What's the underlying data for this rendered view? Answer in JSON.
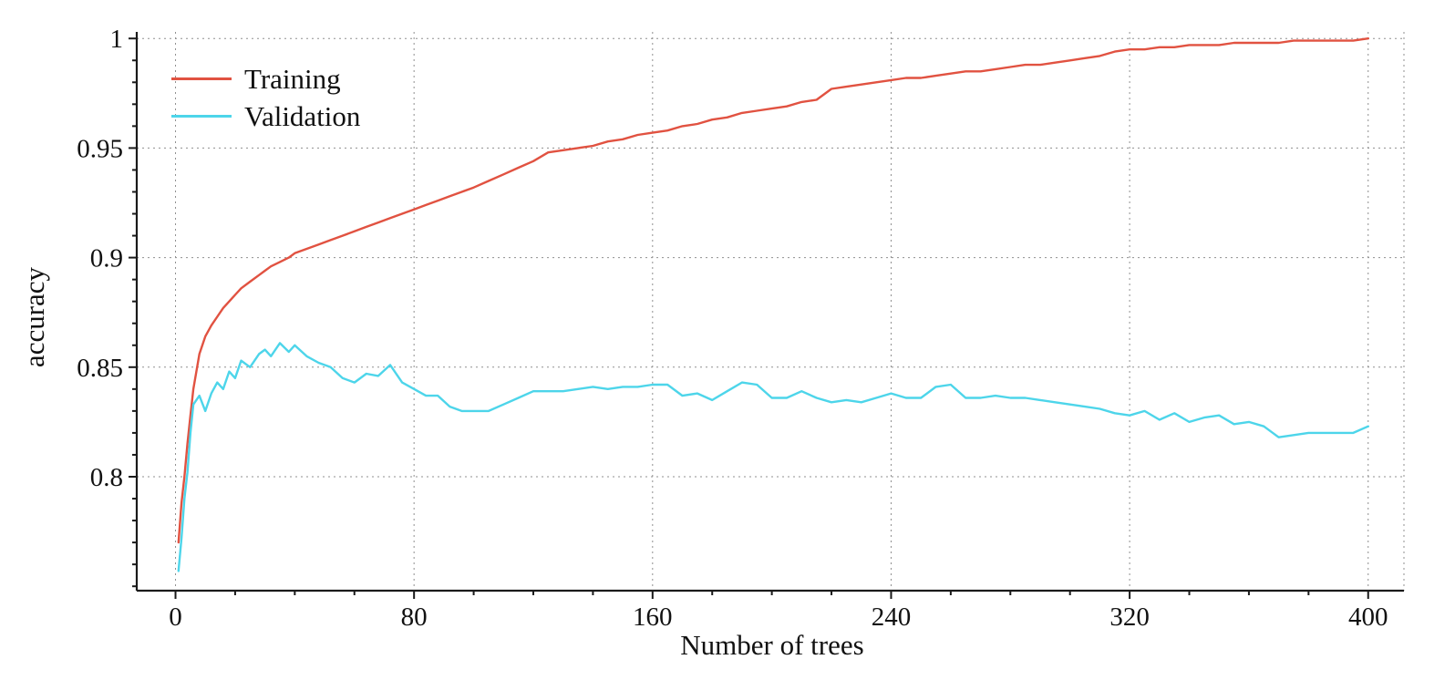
{
  "chart": {
    "x_axis_label": "Number of trees",
    "y_axis_label": "accuracy",
    "background": "#ffffff",
    "grid_color": "#8f8f8f",
    "axis_color": "#1a1a1a"
  },
  "chart_data": {
    "type": "line",
    "title": "",
    "xlabel": "Number of trees",
    "ylabel": "accuracy",
    "xlim": [
      -13,
      412
    ],
    "ylim": [
      0.748,
      1.003
    ],
    "x_ticks": [
      0,
      80,
      160,
      240,
      320,
      400
    ],
    "x_tick_labels": [
      "0",
      "80",
      "160",
      "240",
      "320",
      "400"
    ],
    "y_ticks": [
      0.8,
      0.85,
      0.9,
      0.95,
      1
    ],
    "y_tick_labels": [
      "0.8",
      "0.85",
      "0.9",
      "0.95",
      "1"
    ],
    "x_minor_step": 20,
    "y_minor_step": 0.01,
    "grid": "dotted",
    "legend_position": "top-left",
    "x": [
      1,
      2,
      3,
      4,
      5,
      6,
      8,
      10,
      12,
      14,
      16,
      18,
      20,
      22,
      25,
      28,
      30,
      32,
      35,
      38,
      40,
      44,
      48,
      52,
      56,
      60,
      64,
      68,
      72,
      76,
      80,
      84,
      88,
      92,
      96,
      100,
      105,
      110,
      115,
      120,
      125,
      130,
      135,
      140,
      145,
      150,
      155,
      160,
      165,
      170,
      175,
      180,
      185,
      190,
      195,
      200,
      205,
      210,
      215,
      220,
      225,
      230,
      235,
      240,
      245,
      250,
      255,
      260,
      265,
      270,
      275,
      280,
      285,
      290,
      295,
      300,
      305,
      310,
      315,
      320,
      325,
      330,
      335,
      340,
      345,
      350,
      355,
      360,
      365,
      370,
      375,
      380,
      385,
      390,
      395,
      400
    ],
    "series": [
      {
        "name": "Training",
        "color": "#e15241",
        "values": [
          0.77,
          0.788,
          0.8,
          0.815,
          0.828,
          0.84,
          0.856,
          0.864,
          0.869,
          0.873,
          0.877,
          0.88,
          0.883,
          0.886,
          0.889,
          0.892,
          0.894,
          0.896,
          0.898,
          0.9,
          0.902,
          0.904,
          0.906,
          0.908,
          0.91,
          0.912,
          0.914,
          0.916,
          0.918,
          0.92,
          0.922,
          0.924,
          0.926,
          0.928,
          0.93,
          0.932,
          0.935,
          0.938,
          0.941,
          0.944,
          0.948,
          0.949,
          0.95,
          0.951,
          0.953,
          0.954,
          0.956,
          0.957,
          0.958,
          0.96,
          0.961,
          0.963,
          0.964,
          0.966,
          0.967,
          0.968,
          0.969,
          0.971,
          0.972,
          0.977,
          0.978,
          0.979,
          0.98,
          0.981,
          0.982,
          0.982,
          0.983,
          0.984,
          0.985,
          0.985,
          0.986,
          0.987,
          0.988,
          0.988,
          0.989,
          0.99,
          0.991,
          0.992,
          0.994,
          0.995,
          0.995,
          0.996,
          0.996,
          0.997,
          0.997,
          0.997,
          0.998,
          0.998,
          0.998,
          0.998,
          0.999,
          0.999,
          0.999,
          0.999,
          0.999,
          1.0
        ]
      },
      {
        "name": "Validation",
        "color": "#4dd5ea",
        "values": [
          0.757,
          0.772,
          0.79,
          0.802,
          0.82,
          0.833,
          0.837,
          0.83,
          0.838,
          0.843,
          0.84,
          0.848,
          0.845,
          0.853,
          0.85,
          0.856,
          0.858,
          0.855,
          0.861,
          0.857,
          0.86,
          0.855,
          0.852,
          0.85,
          0.845,
          0.843,
          0.847,
          0.846,
          0.851,
          0.843,
          0.84,
          0.837,
          0.837,
          0.832,
          0.83,
          0.83,
          0.83,
          0.833,
          0.836,
          0.839,
          0.839,
          0.839,
          0.84,
          0.841,
          0.84,
          0.841,
          0.841,
          0.842,
          0.842,
          0.837,
          0.838,
          0.835,
          0.839,
          0.843,
          0.842,
          0.836,
          0.836,
          0.839,
          0.836,
          0.834,
          0.835,
          0.834,
          0.836,
          0.838,
          0.836,
          0.836,
          0.841,
          0.842,
          0.836,
          0.836,
          0.837,
          0.836,
          0.836,
          0.835,
          0.834,
          0.833,
          0.832,
          0.831,
          0.829,
          0.828,
          0.83,
          0.826,
          0.829,
          0.825,
          0.827,
          0.828,
          0.824,
          0.825,
          0.823,
          0.818,
          0.819,
          0.82,
          0.82,
          0.82,
          0.82,
          0.823
        ]
      }
    ]
  }
}
